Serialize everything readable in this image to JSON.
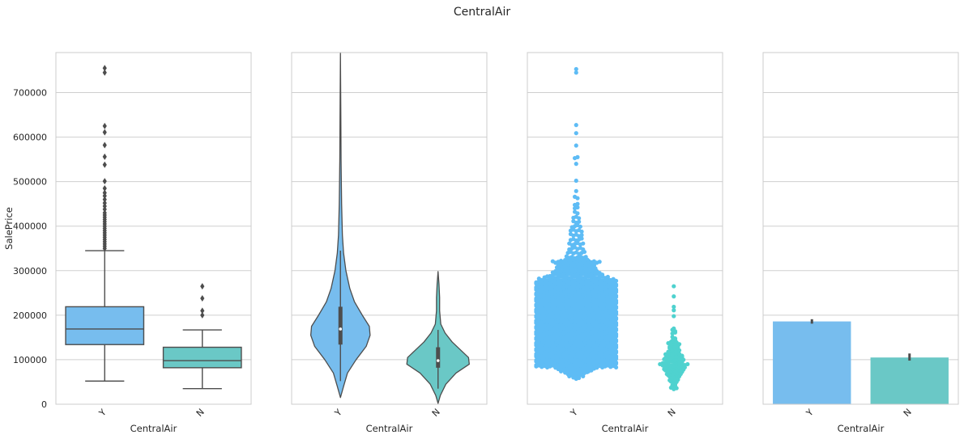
{
  "figure": {
    "title": "CentralAir",
    "colors": {
      "Y": "#77bdee",
      "N": "#6ac8c6",
      "swarm_Y": "#5ebcf5",
      "swarm_N": "#4fd2cf",
      "grid": "#cfcfcf",
      "frame": "#cccccc",
      "line": "#4d4d4d"
    }
  },
  "chart_data": [
    {
      "type": "box",
      "xlabel": "CentralAir",
      "ylabel": "SalePrice",
      "categories": [
        "Y",
        "N"
      ],
      "ylim": [
        0,
        790000
      ],
      "yticks": [
        0,
        100000,
        200000,
        300000,
        400000,
        500000,
        600000,
        700000
      ],
      "grid": true,
      "boxes": [
        {
          "category": "Y",
          "whisker_low": 52000,
          "q1": 134000,
          "median": 169000,
          "q3": 219000,
          "whisker_high": 345000,
          "outliers": [
            350000,
            355000,
            360000,
            365000,
            370000,
            375000,
            380000,
            385000,
            390000,
            395000,
            400000,
            405000,
            410000,
            415000,
            420000,
            425000,
            430000,
            438000,
            445000,
            452000,
            460000,
            468000,
            475000,
            485000,
            501000,
            538000,
            556000,
            582000,
            611000,
            625000,
            745000,
            755000
          ]
        },
        {
          "category": "N",
          "whisker_low": 35000,
          "q1": 82000,
          "median": 98000,
          "q3": 128000,
          "whisker_high": 167000,
          "outliers": [
            200000,
            210000,
            238000,
            265000
          ]
        }
      ]
    },
    {
      "type": "violin",
      "xlabel": "CentralAir",
      "categories": [
        "Y",
        "N"
      ],
      "ylim": [
        0,
        790000
      ],
      "grid": true,
      "violins": [
        {
          "category": "Y",
          "min": 15000,
          "max": 790000,
          "q1": 134000,
          "median": 169000,
          "q3": 219000,
          "whisker_low": 52000,
          "whisker_high": 345000,
          "profile": [
            [
              15000,
              0.0
            ],
            [
              40000,
              0.04
            ],
            [
              70000,
              0.09
            ],
            [
              100000,
              0.2
            ],
            [
              130000,
              0.33
            ],
            [
              155000,
              0.38
            ],
            [
              175000,
              0.37
            ],
            [
              200000,
              0.28
            ],
            [
              230000,
              0.18
            ],
            [
              260000,
              0.12
            ],
            [
              300000,
              0.07
            ],
            [
              340000,
              0.04
            ],
            [
              380000,
              0.025
            ],
            [
              450000,
              0.015
            ],
            [
              550000,
              0.008
            ],
            [
              650000,
              0.005
            ],
            [
              790000,
              0.0
            ]
          ]
        },
        {
          "category": "N",
          "min": 2000,
          "max": 298000,
          "q1": 82000,
          "median": 98000,
          "q3": 128000,
          "whisker_low": 35000,
          "whisker_high": 167000,
          "profile": [
            [
              2000,
              0.0
            ],
            [
              20000,
              0.03
            ],
            [
              45000,
              0.1
            ],
            [
              70000,
              0.23
            ],
            [
              90000,
              0.4
            ],
            [
              105000,
              0.39
            ],
            [
              120000,
              0.3
            ],
            [
              140000,
              0.18
            ],
            [
              160000,
              0.09
            ],
            [
              180000,
              0.035
            ],
            [
              210000,
              0.02
            ],
            [
              240000,
              0.02
            ],
            [
              270000,
              0.012
            ],
            [
              298000,
              0.0
            ]
          ]
        }
      ]
    },
    {
      "type": "swarm",
      "xlabel": "CentralAir",
      "categories": [
        "Y",
        "N"
      ],
      "ylim": [
        0,
        790000
      ],
      "grid": true,
      "distribution": [
        {
          "category": "Y",
          "bins": [
            [
              55000,
              1
            ],
            [
              60000,
              3
            ],
            [
              65000,
              6
            ],
            [
              70000,
              9
            ],
            [
              75000,
              12
            ],
            [
              80000,
              16
            ],
            [
              85000,
              30
            ],
            [
              90000,
              30
            ],
            [
              95000,
              30
            ],
            [
              100000,
              30
            ],
            [
              105000,
              30
            ],
            [
              110000,
              30
            ],
            [
              115000,
              30
            ],
            [
              120000,
              30
            ],
            [
              125000,
              30
            ],
            [
              130000,
              30
            ],
            [
              135000,
              30
            ],
            [
              140000,
              30
            ],
            [
              145000,
              30
            ],
            [
              150000,
              30
            ],
            [
              155000,
              30
            ],
            [
              160000,
              30
            ],
            [
              165000,
              30
            ],
            [
              170000,
              30
            ],
            [
              175000,
              30
            ],
            [
              180000,
              30
            ],
            [
              185000,
              30
            ],
            [
              190000,
              30
            ],
            [
              195000,
              30
            ],
            [
              200000,
              30
            ],
            [
              205000,
              30
            ],
            [
              210000,
              30
            ],
            [
              215000,
              30
            ],
            [
              220000,
              30
            ],
            [
              225000,
              30
            ],
            [
              230000,
              30
            ],
            [
              235000,
              30
            ],
            [
              240000,
              30
            ],
            [
              245000,
              30
            ],
            [
              250000,
              30
            ],
            [
              255000,
              30
            ],
            [
              260000,
              30
            ],
            [
              265000,
              30
            ],
            [
              270000,
              30
            ],
            [
              275000,
              30
            ],
            [
              280000,
              28
            ],
            [
              285000,
              24
            ],
            [
              290000,
              20
            ],
            [
              295000,
              18
            ],
            [
              300000,
              16
            ],
            [
              305000,
              15
            ],
            [
              310000,
              14
            ],
            [
              315000,
              14
            ],
            [
              320000,
              18
            ],
            [
              325000,
              9
            ],
            [
              330000,
              8
            ],
            [
              340000,
              7
            ],
            [
              350000,
              6
            ],
            [
              360000,
              6
            ],
            [
              370000,
              5
            ],
            [
              380000,
              5
            ],
            [
              390000,
              5
            ],
            [
              400000,
              4
            ],
            [
              410000,
              3
            ],
            [
              420000,
              3
            ],
            [
              430000,
              2
            ],
            [
              440000,
              2
            ],
            [
              450000,
              2
            ],
            [
              465000,
              2
            ],
            [
              480000,
              1
            ],
            [
              500000,
              1
            ],
            [
              540000,
              1
            ],
            [
              555000,
              2
            ],
            [
              580000,
              1
            ],
            [
              610000,
              1
            ],
            [
              625000,
              1
            ],
            [
              745000,
              1
            ],
            [
              755000,
              1
            ]
          ]
        },
        {
          "category": "N",
          "bins": [
            [
              35000,
              3
            ],
            [
              40000,
              2
            ],
            [
              45000,
              2
            ],
            [
              50000,
              3
            ],
            [
              55000,
              4
            ],
            [
              60000,
              4
            ],
            [
              65000,
              5
            ],
            [
              70000,
              6
            ],
            [
              75000,
              7
            ],
            [
              80000,
              8
            ],
            [
              85000,
              9
            ],
            [
              90000,
              11
            ],
            [
              95000,
              7
            ],
            [
              100000,
              8
            ],
            [
              105000,
              7
            ],
            [
              110000,
              7
            ],
            [
              115000,
              5
            ],
            [
              120000,
              5
            ],
            [
              125000,
              4
            ],
            [
              130000,
              4
            ],
            [
              135000,
              5
            ],
            [
              140000,
              3
            ],
            [
              145000,
              2
            ],
            [
              150000,
              2
            ],
            [
              160000,
              2
            ],
            [
              165000,
              2
            ],
            [
              170000,
              1
            ],
            [
              200000,
              1
            ],
            [
              210000,
              1
            ],
            [
              220000,
              1
            ],
            [
              240000,
              1
            ],
            [
              265000,
              1
            ]
          ]
        }
      ]
    },
    {
      "type": "bar",
      "xlabel": "CentralAir",
      "categories": [
        "Y",
        "N"
      ],
      "values": [
        186000,
        105000
      ],
      "error_bars": [
        [
          181000,
          191000
        ],
        [
          98000,
          114000
        ]
      ],
      "ylim": [
        0,
        790000
      ],
      "grid": true
    }
  ]
}
